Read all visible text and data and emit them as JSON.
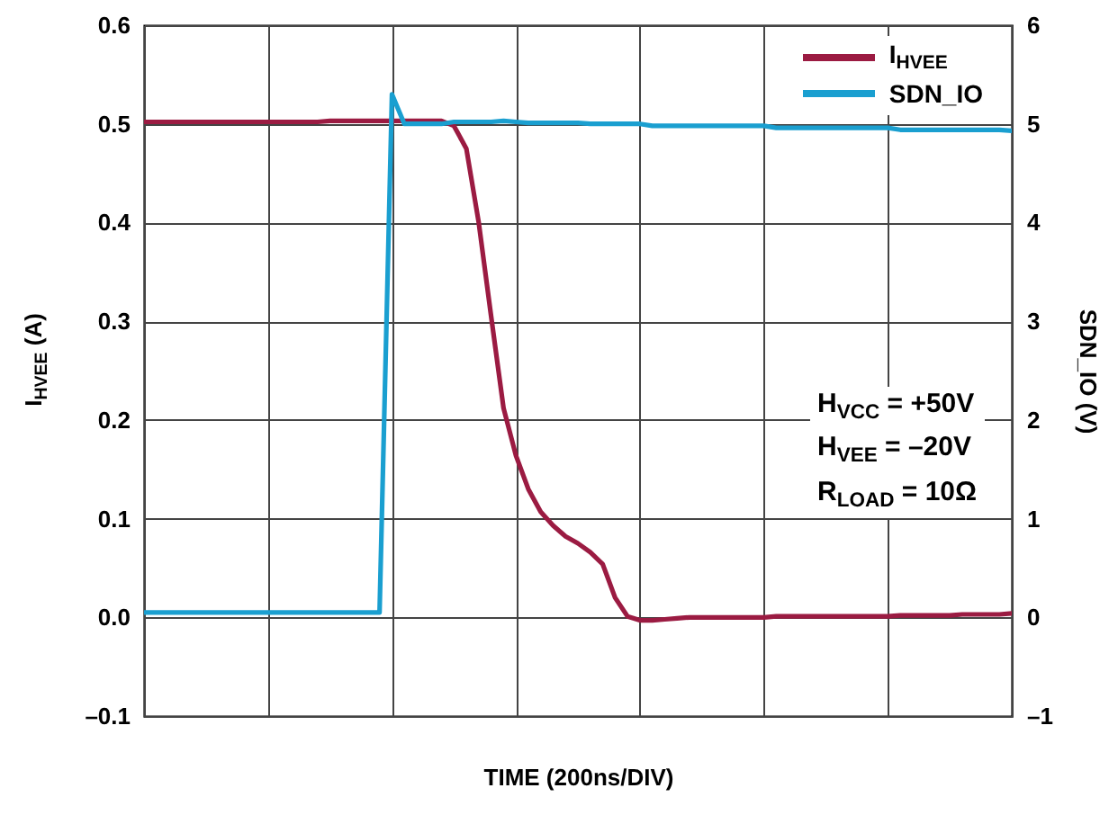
{
  "chart_data": {
    "type": "line",
    "xlabel": "TIME (200ns/DIV)",
    "ylabel": "I$_{HVEE}$ (A)",
    "y2label": "SDN_IO (V)",
    "categories": [
      null,
      null,
      null,
      null,
      null,
      null,
      null,
      null,
      null,
      null,
      null,
      null,
      null,
      null,
      null,
      null,
      null,
      null,
      null,
      null,
      null,
      null,
      null,
      null,
      null,
      null,
      null,
      null,
      null,
      null,
      null,
      null,
      null,
      null,
      null,
      null,
      null,
      null,
      null,
      null,
      null,
      null,
      null,
      null,
      null,
      null,
      null,
      null,
      null,
      null,
      null,
      null,
      null,
      null,
      null,
      null,
      null,
      null,
      null,
      null,
      null,
      null,
      null,
      null,
      null,
      null,
      null,
      null,
      null,
      null,
      null
    ],
    "ylim": [
      -0.1,
      0.6
    ],
    "yticks": [
      {
        "value": -0.1,
        "label": "–0.1"
      },
      {
        "value": 0,
        "label": "0.0"
      },
      0.1,
      0.2,
      0.3,
      0.4,
      0.5,
      0.6
    ],
    "y2lim": [
      -1,
      6
    ],
    "y2ticks": [
      {
        "value": -1,
        "label": "–1"
      },
      0,
      1,
      2,
      3,
      4,
      5,
      6
    ],
    "tick_labels": "y",
    "grid": true,
    "legend": "top right",
    "annotations": [
      "H$_{VCC}$ = +50V",
      "H$_{VEE}$ = –20V",
      "R$_{LOAD}$ = 10Ω"
    ],
    "series": [
      {
        "name": "I$_{HVEE}$",
        "color": "#9b1b42",
        "values": [
          0.502,
          0.502,
          0.502,
          0.502,
          0.502,
          0.502,
          0.502,
          0.502,
          0.502,
          0.502,
          0.502,
          0.502,
          0.502,
          0.502,
          0.502,
          0.503,
          0.503,
          0.503,
          0.503,
          0.503,
          0.503,
          0.503,
          0.503,
          0.503,
          0.503,
          0.498,
          0.475,
          0.4,
          0.305,
          0.212,
          0.164,
          0.13,
          0.107,
          0.093,
          0.082,
          0.075,
          0.066,
          0.054,
          0.02,
          0.001,
          -0.003,
          -0.003,
          -0.002,
          -0.001,
          0.0,
          0.0,
          0.0,
          0.0,
          0.0,
          0.0,
          0.0,
          0.001,
          0.001,
          0.001,
          0.001,
          0.001,
          0.001,
          0.001,
          0.001,
          0.001,
          0.001,
          0.002,
          0.002,
          0.002,
          0.002,
          0.002,
          0.003,
          0.003,
          0.003,
          0.003,
          0.004
        ]
      },
      {
        "name": "SDN_IO",
        "color": "#1a9fd0",
        "axis": "y2",
        "values": [
          0.05,
          0.05,
          0.05,
          0.05,
          0.05,
          0.05,
          0.05,
          0.05,
          0.05,
          0.05,
          0.05,
          0.05,
          0.05,
          0.05,
          0.05,
          0.05,
          0.05,
          0.05,
          0.05,
          0.05,
          5.3,
          5.0,
          5.0,
          5.0,
          5.0,
          5.02,
          5.02,
          5.02,
          5.02,
          5.03,
          5.02,
          5.01,
          5.01,
          5.01,
          5.01,
          5.01,
          5.0,
          5.0,
          5.0,
          5.0,
          5.0,
          4.98,
          4.98,
          4.98,
          4.98,
          4.98,
          4.98,
          4.98,
          4.98,
          4.98,
          4.98,
          4.96,
          4.96,
          4.96,
          4.96,
          4.96,
          4.96,
          4.96,
          4.96,
          4.96,
          4.96,
          4.94,
          4.94,
          4.94,
          4.94,
          4.94,
          4.94,
          4.94,
          4.94,
          4.94,
          4.93
        ]
      }
    ]
  }
}
